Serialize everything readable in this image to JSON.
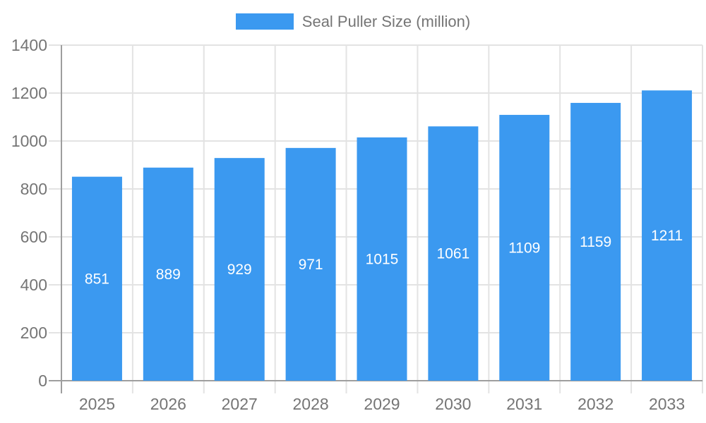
{
  "chart_data": {
    "type": "bar",
    "title": "",
    "legend_label": "Seal Puller Size (million)",
    "legend_position": "top",
    "categories": [
      "2025",
      "2026",
      "2027",
      "2028",
      "2029",
      "2030",
      "2031",
      "2032",
      "2033"
    ],
    "values": [
      851,
      889,
      929,
      971,
      1015,
      1061,
      1109,
      1159,
      1211
    ],
    "xlabel": "",
    "ylabel": "",
    "ylim": [
      0,
      1400
    ],
    "ytick_step": 200,
    "ytick_labels": [
      "0",
      "200",
      "400",
      "600",
      "800",
      "1000",
      "1200",
      "1400"
    ],
    "grid": true,
    "bar_label_position": "inside-center",
    "colors": {
      "bar": "#3B99F0",
      "bar_label": "#FFFFFF",
      "axis_text": "#757575",
      "grid_line": "#E3E3E3",
      "axis_line": "#9E9E9E",
      "background": "#FFFFFF"
    }
  }
}
